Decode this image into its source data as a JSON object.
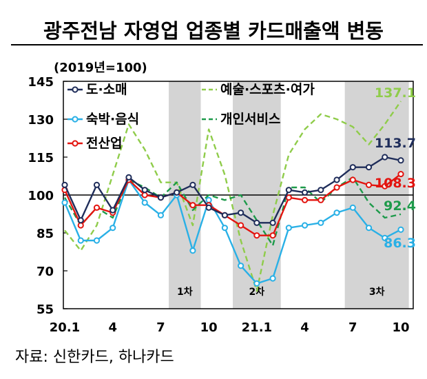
{
  "title": "광주전남 자영업 업종별 카드매출액 변동",
  "source": "자료: 신한카드, 하나카드",
  "chart_data": {
    "type": "line",
    "unit_note": "(2019년=100)",
    "x": [
      "20.1",
      "20.2",
      "20.3",
      "20.4",
      "20.5",
      "20.6",
      "20.7",
      "20.8",
      "20.9",
      "20.10",
      "20.11",
      "20.12",
      "21.1",
      "21.2",
      "21.3",
      "21.4",
      "21.5",
      "21.6",
      "21.7",
      "21.8",
      "21.9",
      "21.10"
    ],
    "x_tick_labels": [
      "20.1",
      "4",
      "7",
      "10",
      "21.1",
      "4",
      "7",
      "10"
    ],
    "x_tick_indices": [
      0,
      3,
      6,
      9,
      12,
      15,
      18,
      21
    ],
    "ylim": [
      55,
      145
    ],
    "y_ticks": [
      55,
      70,
      85,
      100,
      115,
      130,
      145
    ],
    "reference_line": 100,
    "shaded_periods": [
      {
        "label": "1차",
        "start": "20.8",
        "end": "20.9"
      },
      {
        "label": "2차",
        "start": "20.12",
        "end": "21.2"
      },
      {
        "label": "3차",
        "start": "21.7",
        "end": "21.10"
      }
    ],
    "series": [
      {
        "name": "도·소매",
        "color": "#1f2d5a",
        "style": "solid-marker",
        "values": [
          104,
          90,
          104,
          94,
          107,
          102,
          99,
          101,
          104,
          95,
          92,
          93,
          89,
          89,
          102,
          101,
          102,
          106,
          111,
          111,
          115,
          113.7
        ]
      },
      {
        "name": "숙박·음식",
        "color": "#29b0e6",
        "style": "solid-marker",
        "values": [
          97,
          82,
          82,
          87,
          106,
          97,
          92,
          100,
          78,
          98,
          87,
          72,
          65,
          67,
          87,
          88,
          89,
          93,
          95,
          87,
          83,
          86.3
        ]
      },
      {
        "name": "전산업",
        "color": "#e3140f",
        "style": "solid-marker",
        "values": [
          102,
          88,
          95,
          93,
          106,
          100,
          99,
          101,
          96,
          96,
          92,
          88,
          84,
          84,
          99,
          98,
          98,
          103,
          106,
          104,
          103.5,
          108.3
        ]
      },
      {
        "name": "예술·스포츠·여가",
        "color": "#8fcc4a",
        "style": "dashed",
        "values": [
          86,
          78,
          88,
          108,
          128,
          118,
          105,
          105,
          88,
          126,
          108,
          82,
          62,
          92,
          116,
          126,
          132,
          130,
          127,
          120,
          128,
          137.1
        ]
      },
      {
        "name": "개인서비스",
        "color": "#1d9a4a",
        "style": "dashed",
        "values": [
          99,
          88,
          95,
          91,
          106,
          103,
          99,
          105,
          94,
          100,
          98,
          100,
          90,
          80,
          103,
          103,
          97,
          103,
          107,
          97,
          91,
          92.4
        ]
      }
    ],
    "end_labels": [
      {
        "text": "137.1",
        "color": "#8fcc4a"
      },
      {
        "text": "113.7",
        "color": "#1f2d5a"
      },
      {
        "text": "108.3",
        "color": "#e3140f"
      },
      {
        "text": "92.4",
        "color": "#1d9a4a"
      },
      {
        "text": "86.3",
        "color": "#29b0e6"
      }
    ],
    "legend": {
      "placement": "top-left and top-center"
    }
  }
}
